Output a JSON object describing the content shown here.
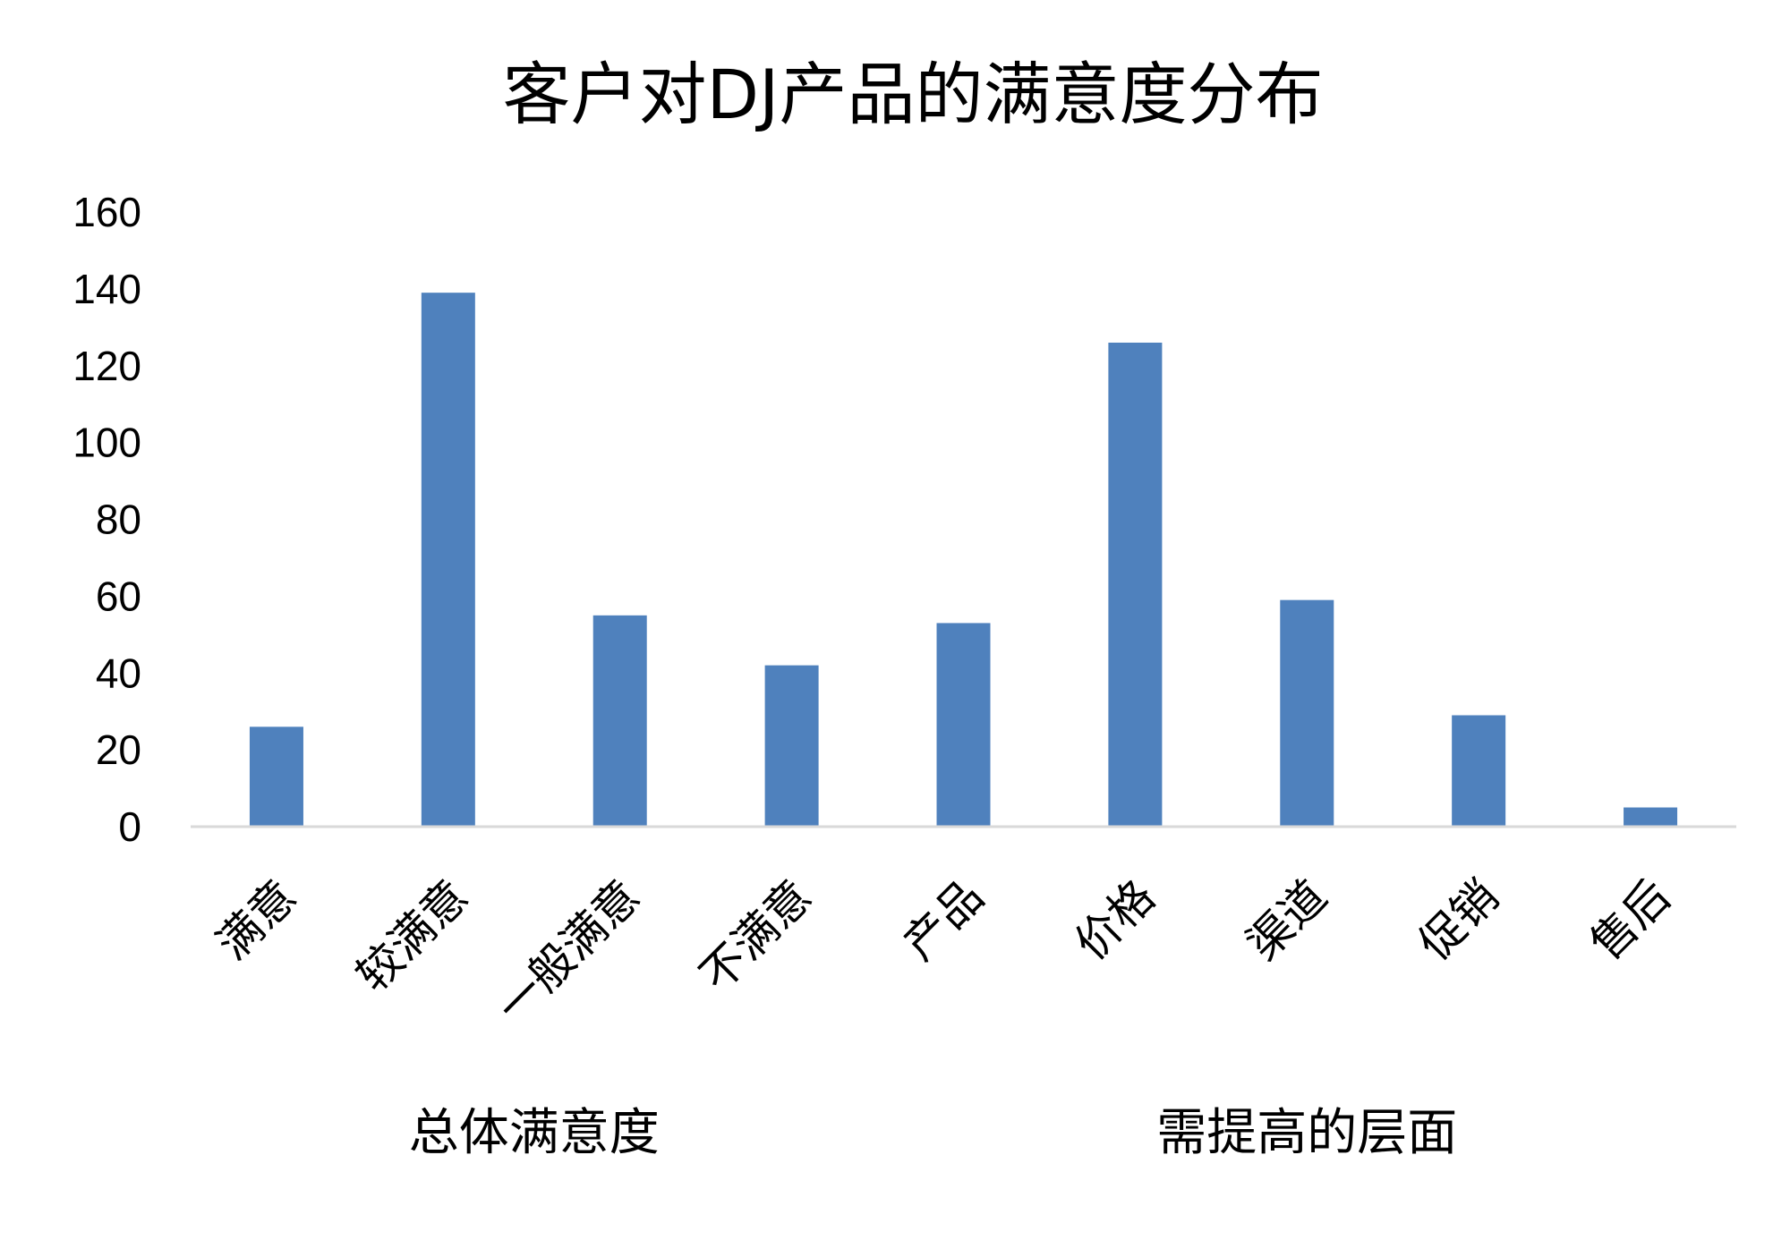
{
  "chart_data": {
    "type": "bar",
    "title": "客户对DJ产品的满意度分布",
    "categories": [
      "满意",
      "较满意",
      "一般满意",
      "不满意",
      "产品",
      "价格",
      "渠道",
      "促销",
      "售后"
    ],
    "values": [
      26,
      139,
      55,
      42,
      53,
      126,
      59,
      29,
      5
    ],
    "groups": [
      {
        "label": "总体满意度",
        "categories": [
          "满意",
          "较满意",
          "一般满意",
          "不满意"
        ]
      },
      {
        "label": "需提高的层面",
        "categories": [
          "产品",
          "价格",
          "渠道",
          "促销",
          "售后"
        ]
      }
    ],
    "yticks": [
      0,
      20,
      40,
      60,
      80,
      100,
      120,
      140,
      160
    ],
    "ylim": [
      0,
      160
    ],
    "grid": false,
    "bar_color": "#4F81BD",
    "axis_color": "#D9D9D9"
  }
}
